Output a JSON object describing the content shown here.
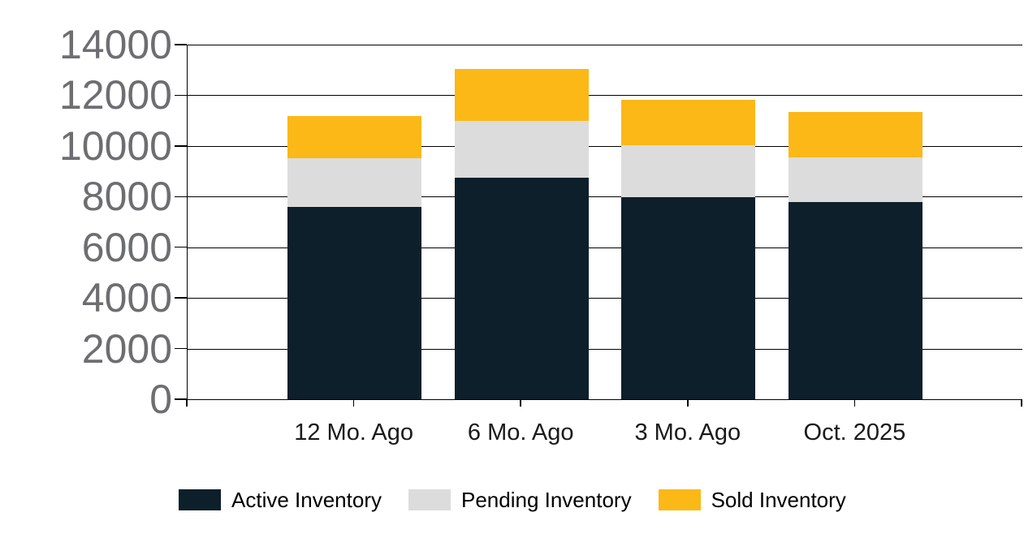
{
  "page": {
    "background": "#ffffff"
  },
  "colors": {
    "axis": "#000000",
    "gridline": "#000000",
    "y_tick_label": "#6d6e71",
    "x_tick_label": "#1a1a1a",
    "legend_text": "#000000",
    "active_inventory": "#0d1f2b",
    "pending_inventory": "#dcdcdd",
    "sold_inventory": "#fbb817"
  },
  "chart_data": {
    "type": "bar",
    "stacked": true,
    "title": "",
    "xlabel": "",
    "ylabel": "",
    "categories": [
      "12 Mo. Ago",
      "6 Mo. Ago",
      "3 Mo. Ago",
      "Oct. 2025"
    ],
    "series": [
      {
        "name": "Active Inventory",
        "color": "#0d1f2b",
        "values": [
          7600,
          8750,
          7975,
          7800
        ]
      },
      {
        "name": "Pending Inventory",
        "color": "#dcdcdd",
        "values": [
          1925,
          2250,
          2050,
          1750
        ]
      },
      {
        "name": "Sold Inventory",
        "color": "#fbb817",
        "values": [
          1650,
          2050,
          1800,
          1800
        ]
      }
    ],
    "stack_totals": [
      11175,
      13050,
      11825,
      11350
    ],
    "ylim": [
      0,
      14000
    ],
    "ytick_interval": 2000,
    "ytick_labels": [
      "0",
      "2000",
      "4000",
      "6000",
      "8000",
      "10000",
      "12000",
      "14000"
    ],
    "grid": true,
    "legend_position": "bottom"
  }
}
